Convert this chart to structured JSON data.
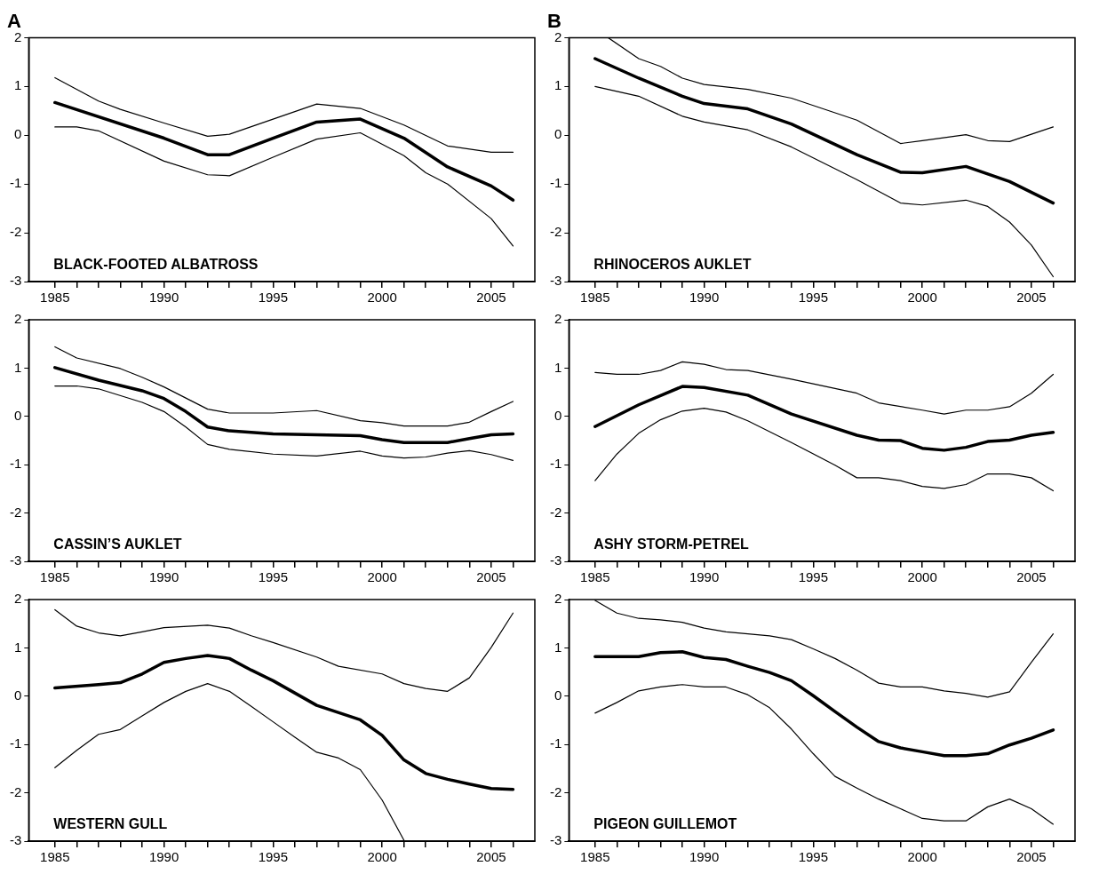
{
  "chart_data": [
    {
      "type": "line",
      "title": "A",
      "annotations": [
        "BLACK-FOOTED ALBATROSS"
      ],
      "xlim": [
        1983.8,
        2007
      ],
      "ylim": [
        -3,
        2
      ],
      "xticks": [
        1985,
        {
          "value": 1986,
          "label": null
        },
        {
          "value": 1987,
          "label": null
        },
        {
          "value": 1988,
          "label": null
        },
        {
          "value": 1989,
          "label": null
        },
        1990,
        {
          "value": 1991,
          "label": null
        },
        {
          "value": 1992,
          "label": null
        },
        {
          "value": 1993,
          "label": null
        },
        {
          "value": 1994,
          "label": null
        },
        1995,
        {
          "value": 1996,
          "label": null
        },
        {
          "value": 1997,
          "label": null
        },
        {
          "value": 1998,
          "label": null
        },
        {
          "value": 1999,
          "label": null
        },
        2000,
        {
          "value": 2001,
          "label": null
        },
        {
          "value": 2002,
          "label": null
        },
        {
          "value": 2003,
          "label": null
        },
        {
          "value": 2004,
          "label": null
        },
        2005,
        {
          "value": 2006,
          "label": null
        }
      ],
      "yticks": [
        -3,
        -2,
        -1,
        0,
        1,
        2
      ],
      "grid": false,
      "legend": false,
      "marker": "none",
      "line_style": "solid",
      "series": [
        {
          "color": "#000000",
          "x": [
            1985,
            1990,
            1992,
            1993,
            1995,
            1997,
            1999,
            2001,
            2003,
            2005,
            2006
          ],
          "values": [
            0.67,
            -0.06,
            -0.4,
            -0.4,
            -0.06,
            0.27,
            0.33,
            -0.06,
            -0.65,
            -1.04,
            -1.33
          ]
        },
        {
          "color": "#000000",
          "x": [
            1985,
            1987,
            1988,
            1990,
            1992,
            1993,
            1995,
            1997,
            1999,
            2001,
            2003,
            2005,
            2006
          ],
          "values": [
            1.18,
            0.7,
            0.53,
            0.25,
            -0.02,
            0.02,
            0.33,
            0.64,
            0.55,
            0.21,
            -0.22,
            -0.35,
            -0.35
          ]
        },
        {
          "color": "#000000",
          "x": [
            1985,
            1986,
            1987,
            1990,
            1992,
            1993,
            1995,
            1997,
            1999,
            2001,
            2002,
            2003,
            2005,
            2006
          ],
          "values": [
            0.17,
            0.17,
            0.09,
            -0.53,
            -0.81,
            -0.83,
            -0.45,
            -0.08,
            0.05,
            -0.42,
            -0.77,
            -1.0,
            -1.71,
            -2.27
          ]
        }
      ]
    },
    {
      "type": "line",
      "title": "B",
      "annotations": [
        "RHINOCEROS AUKLET"
      ],
      "xlim": [
        1983.8,
        2007
      ],
      "ylim": [
        -3,
        2
      ],
      "xticks": [
        1985,
        {
          "value": 1986,
          "label": null
        },
        {
          "value": 1987,
          "label": null
        },
        {
          "value": 1988,
          "label": null
        },
        {
          "value": 1989,
          "label": null
        },
        1990,
        {
          "value": 1991,
          "label": null
        },
        {
          "value": 1992,
          "label": null
        },
        {
          "value": 1993,
          "label": null
        },
        {
          "value": 1994,
          "label": null
        },
        1995,
        {
          "value": 1996,
          "label": null
        },
        {
          "value": 1997,
          "label": null
        },
        {
          "value": 1998,
          "label": null
        },
        {
          "value": 1999,
          "label": null
        },
        2000,
        {
          "value": 2001,
          "label": null
        },
        {
          "value": 2002,
          "label": null
        },
        {
          "value": 2003,
          "label": null
        },
        {
          "value": 2004,
          "label": null
        },
        2005,
        {
          "value": 2006,
          "label": null
        }
      ],
      "yticks": [
        -3,
        -2,
        -1,
        0,
        1,
        2
      ],
      "grid": false,
      "legend": false,
      "marker": "none",
      "line_style": "solid",
      "series": [
        {
          "color": "#000000",
          "x": [
            1985,
            1987,
            1989,
            1990,
            1992,
            1994,
            1997,
            1999,
            2000,
            2002,
            2004,
            2006
          ],
          "values": [
            1.57,
            1.17,
            0.8,
            0.65,
            0.54,
            0.23,
            -0.4,
            -0.76,
            -0.77,
            -0.64,
            -0.95,
            -1.39
          ]
        },
        {
          "color": "#000000",
          "x": [
            1985.6,
            1987,
            1988,
            1989,
            1990,
            1992,
            1994,
            1997,
            1999,
            2000,
            2002,
            2003,
            2004,
            2006
          ],
          "values": [
            2.0,
            1.57,
            1.41,
            1.17,
            1.04,
            0.94,
            0.76,
            0.31,
            -0.17,
            -0.11,
            0.01,
            -0.11,
            -0.13,
            0.17
          ]
        },
        {
          "color": "#000000",
          "x": [
            1985,
            1987,
            1989,
            1990,
            1992,
            1994,
            1997,
            1999,
            2000,
            2002,
            2003,
            2004,
            2005,
            2006
          ],
          "values": [
            1.0,
            0.8,
            0.39,
            0.27,
            0.11,
            -0.24,
            -0.91,
            -1.39,
            -1.43,
            -1.33,
            -1.46,
            -1.78,
            -2.25,
            -2.9
          ]
        }
      ]
    },
    {
      "type": "line",
      "annotations": [
        "CASSIN’S AUKLET"
      ],
      "xlim": [
        1983.8,
        2007
      ],
      "ylim": [
        -3,
        2
      ],
      "xticks": [
        1985,
        {
          "value": 1986,
          "label": null
        },
        {
          "value": 1987,
          "label": null
        },
        {
          "value": 1988,
          "label": null
        },
        {
          "value": 1989,
          "label": null
        },
        1990,
        {
          "value": 1991,
          "label": null
        },
        {
          "value": 1992,
          "label": null
        },
        {
          "value": 1993,
          "label": null
        },
        {
          "value": 1994,
          "label": null
        },
        1995,
        {
          "value": 1996,
          "label": null
        },
        {
          "value": 1997,
          "label": null
        },
        {
          "value": 1998,
          "label": null
        },
        {
          "value": 1999,
          "label": null
        },
        2000,
        {
          "value": 2001,
          "label": null
        },
        {
          "value": 2002,
          "label": null
        },
        {
          "value": 2003,
          "label": null
        },
        {
          "value": 2004,
          "label": null
        },
        2005,
        {
          "value": 2006,
          "label": null
        }
      ],
      "yticks": [
        -3,
        -2,
        -1,
        0,
        1,
        2
      ],
      "grid": false,
      "legend": false,
      "marker": "none",
      "line_style": "solid",
      "series": [
        {
          "color": "#000000",
          "x": [
            1985,
            1987,
            1989,
            1990,
            1991,
            1992,
            1993,
            1995,
            1997,
            1999,
            2000,
            2001,
            2003,
            2004,
            2005,
            2006
          ],
          "values": [
            1.01,
            0.75,
            0.53,
            0.37,
            0.1,
            -0.22,
            -0.3,
            -0.36,
            -0.38,
            -0.4,
            -0.48,
            -0.54,
            -0.54,
            -0.46,
            -0.38,
            -0.36
          ]
        },
        {
          "color": "#000000",
          "x": [
            1985,
            1986,
            1988,
            1989,
            1990,
            1992,
            1993,
            1995,
            1997,
            1999,
            2000,
            2001,
            2003,
            2004,
            2005,
            2006
          ],
          "values": [
            1.44,
            1.21,
            0.99,
            0.81,
            0.61,
            0.15,
            0.07,
            0.07,
            0.12,
            -0.09,
            -0.13,
            -0.2,
            -0.2,
            -0.12,
            0.1,
            0.31
          ]
        },
        {
          "color": "#000000",
          "x": [
            1985,
            1986,
            1987,
            1989,
            1990,
            1991,
            1992,
            1993,
            1995,
            1997,
            1999,
            2000,
            2001,
            2002,
            2003,
            2004,
            2005,
            2006
          ],
          "values": [
            0.63,
            0.63,
            0.57,
            0.29,
            0.1,
            -0.22,
            -0.58,
            -0.68,
            -0.78,
            -0.82,
            -0.72,
            -0.82,
            -0.86,
            -0.84,
            -0.76,
            -0.71,
            -0.79,
            -0.91
          ]
        }
      ]
    },
    {
      "type": "line",
      "annotations": [
        "ASHY STORM-PETREL"
      ],
      "xlim": [
        1983.8,
        2007
      ],
      "ylim": [
        -3,
        2
      ],
      "xticks": [
        1985,
        {
          "value": 1986,
          "label": null
        },
        {
          "value": 1987,
          "label": null
        },
        {
          "value": 1988,
          "label": null
        },
        {
          "value": 1989,
          "label": null
        },
        1990,
        {
          "value": 1991,
          "label": null
        },
        {
          "value": 1992,
          "label": null
        },
        {
          "value": 1993,
          "label": null
        },
        {
          "value": 1994,
          "label": null
        },
        1995,
        {
          "value": 1996,
          "label": null
        },
        {
          "value": 1997,
          "label": null
        },
        {
          "value": 1998,
          "label": null
        },
        {
          "value": 1999,
          "label": null
        },
        2000,
        {
          "value": 2001,
          "label": null
        },
        {
          "value": 2002,
          "label": null
        },
        {
          "value": 2003,
          "label": null
        },
        {
          "value": 2004,
          "label": null
        },
        2005,
        {
          "value": 2006,
          "label": null
        }
      ],
      "yticks": [
        -3,
        -2,
        -1,
        0,
        1,
        2
      ],
      "grid": false,
      "legend": false,
      "marker": "none",
      "line_style": "solid",
      "series": [
        {
          "color": "#000000",
          "x": [
            1985,
            1987,
            1989,
            1990,
            1992,
            1994,
            1997,
            1998,
            1999,
            2000,
            2001,
            2002,
            2003,
            2004,
            2005,
            2006
          ],
          "values": [
            -0.21,
            0.24,
            0.62,
            0.6,
            0.44,
            0.05,
            -0.39,
            -0.49,
            -0.5,
            -0.66,
            -0.7,
            -0.64,
            -0.52,
            -0.49,
            -0.39,
            -0.33
          ]
        },
        {
          "color": "#000000",
          "x": [
            1985,
            1986,
            1987,
            1988,
            1989,
            1990,
            1991,
            1992,
            1994,
            1997,
            1998,
            2000,
            2001,
            2002,
            2003,
            2004,
            2005,
            2006
          ],
          "values": [
            0.91,
            0.87,
            0.87,
            0.95,
            1.13,
            1.08,
            0.97,
            0.95,
            0.77,
            0.48,
            0.28,
            0.13,
            0.05,
            0.13,
            0.13,
            0.2,
            0.48,
            0.87
          ]
        },
        {
          "color": "#000000",
          "x": [
            1985,
            1986,
            1987,
            1988,
            1989,
            1990,
            1991,
            1992,
            1994,
            1996,
            1997,
            1998,
            1999,
            2000,
            2001,
            2002,
            2003,
            2004,
            2005,
            2006
          ],
          "values": [
            -1.33,
            -0.78,
            -0.35,
            -0.07,
            0.11,
            0.17,
            0.09,
            -0.09,
            -0.54,
            -1.01,
            -1.27,
            -1.27,
            -1.33,
            -1.45,
            -1.49,
            -1.41,
            -1.19,
            -1.19,
            -1.27,
            -1.54
          ]
        }
      ]
    },
    {
      "type": "line",
      "annotations": [
        "WESTERN GULL"
      ],
      "xlim": [
        1983.8,
        2007
      ],
      "ylim": [
        -3,
        2
      ],
      "xticks": [
        1985,
        {
          "value": 1986,
          "label": null
        },
        {
          "value": 1987,
          "label": null
        },
        {
          "value": 1988,
          "label": null
        },
        {
          "value": 1989,
          "label": null
        },
        1990,
        {
          "value": 1991,
          "label": null
        },
        {
          "value": 1992,
          "label": null
        },
        {
          "value": 1993,
          "label": null
        },
        {
          "value": 1994,
          "label": null
        },
        1995,
        {
          "value": 1996,
          "label": null
        },
        {
          "value": 1997,
          "label": null
        },
        {
          "value": 1998,
          "label": null
        },
        {
          "value": 1999,
          "label": null
        },
        2000,
        {
          "value": 2001,
          "label": null
        },
        {
          "value": 2002,
          "label": null
        },
        {
          "value": 2003,
          "label": null
        },
        {
          "value": 2004,
          "label": null
        },
        2005,
        {
          "value": 2006,
          "label": null
        }
      ],
      "yticks": [
        -3,
        -2,
        -1,
        0,
        1,
        2
      ],
      "grid": false,
      "legend": false,
      "marker": "none",
      "line_style": "solid",
      "series": [
        {
          "color": "#000000",
          "x": [
            1985,
            1987,
            1988,
            1989,
            1990,
            1991,
            1992,
            1993,
            1994,
            1995,
            1997,
            1999,
            2000,
            2001,
            2002,
            2003,
            2004,
            2005,
            2006
          ],
          "values": [
            0.17,
            0.24,
            0.28,
            0.46,
            0.7,
            0.78,
            0.84,
            0.78,
            0.54,
            0.32,
            -0.19,
            -0.49,
            -0.81,
            -1.32,
            -1.6,
            -1.72,
            -1.82,
            -1.91,
            -1.93
          ]
        },
        {
          "color": "#000000",
          "x": [
            1985,
            1986,
            1987,
            1988,
            1989,
            1990,
            1992,
            1993,
            1994,
            1995,
            1997,
            1998,
            2000,
            2001,
            2002,
            2003,
            2004,
            2005,
            2006
          ],
          "values": [
            1.79,
            1.45,
            1.31,
            1.25,
            1.33,
            1.42,
            1.47,
            1.41,
            1.25,
            1.11,
            0.81,
            0.62,
            0.46,
            0.26,
            0.16,
            0.1,
            0.38,
            1.01,
            1.72
          ]
        },
        {
          "color": "#000000",
          "x": [
            1985,
            1986,
            1987,
            1988,
            1989,
            1990,
            1991,
            1992,
            1993,
            1994,
            1995,
            1996,
            1997,
            1998,
            1999,
            2000,
            2001
          ],
          "values": [
            -1.48,
            -1.12,
            -0.79,
            -0.69,
            -0.41,
            -0.13,
            0.1,
            0.26,
            0.1,
            -0.21,
            -0.53,
            -0.85,
            -1.16,
            -1.28,
            -1.52,
            -2.15,
            -2.98
          ]
        }
      ]
    },
    {
      "type": "line",
      "annotations": [
        "PIGEON GUILLEMOT"
      ],
      "xlim": [
        1983.8,
        2007
      ],
      "ylim": [
        -3,
        2
      ],
      "xticks": [
        1985,
        {
          "value": 1986,
          "label": null
        },
        {
          "value": 1987,
          "label": null
        },
        {
          "value": 1988,
          "label": null
        },
        {
          "value": 1989,
          "label": null
        },
        1990,
        {
          "value": 1991,
          "label": null
        },
        {
          "value": 1992,
          "label": null
        },
        {
          "value": 1993,
          "label": null
        },
        {
          "value": 1994,
          "label": null
        },
        1995,
        {
          "value": 1996,
          "label": null
        },
        {
          "value": 1997,
          "label": null
        },
        {
          "value": 1998,
          "label": null
        },
        {
          "value": 1999,
          "label": null
        },
        2000,
        {
          "value": 2001,
          "label": null
        },
        {
          "value": 2002,
          "label": null
        },
        {
          "value": 2003,
          "label": null
        },
        {
          "value": 2004,
          "label": null
        },
        2005,
        {
          "value": 2006,
          "label": null
        }
      ],
      "yticks": [
        -3,
        -2,
        -1,
        0,
        1,
        2
      ],
      "grid": false,
      "legend": false,
      "marker": "none",
      "line_style": "solid",
      "series": [
        {
          "color": "#000000",
          "x": [
            1985,
            1987,
            1988,
            1989,
            1990,
            1991,
            1992,
            1993,
            1994,
            1995,
            1996,
            1997,
            1998,
            1999,
            2000,
            2001,
            2002,
            2003,
            2004,
            2005,
            2006
          ],
          "values": [
            0.82,
            0.82,
            0.9,
            0.92,
            0.8,
            0.76,
            0.62,
            0.49,
            0.32,
            0.01,
            -0.32,
            -0.64,
            -0.94,
            -1.07,
            -1.15,
            -1.23,
            -1.23,
            -1.19,
            -1.01,
            -0.87,
            -0.7
          ]
        },
        {
          "color": "#000000",
          "x": [
            1985,
            1986,
            1987,
            1988,
            1989,
            1990,
            1991,
            1992,
            1993,
            1994,
            1995,
            1996,
            1997,
            1998,
            1999,
            2000,
            2001,
            2002,
            2003,
            2004,
            2005,
            2006
          ],
          "values": [
            1.98,
            1.72,
            1.61,
            1.58,
            1.53,
            1.41,
            1.33,
            1.29,
            1.25,
            1.17,
            0.98,
            0.78,
            0.54,
            0.27,
            0.19,
            0.19,
            0.11,
            0.06,
            -0.02,
            0.09,
            0.7,
            1.29
          ]
        },
        {
          "color": "#000000",
          "x": [
            1985,
            1986,
            1987,
            1988,
            1989,
            1990,
            1991,
            1992,
            1993,
            1994,
            1995,
            1996,
            1997,
            1998,
            1999,
            2000,
            2001,
            2002,
            2003,
            2004,
            2005,
            2006
          ],
          "values": [
            -0.35,
            -0.13,
            0.11,
            0.19,
            0.24,
            0.19,
            0.19,
            0.03,
            -0.24,
            -0.68,
            -1.19,
            -1.66,
            -1.9,
            -2.13,
            -2.33,
            -2.53,
            -2.58,
            -2.58,
            -2.29,
            -2.13,
            -2.33,
            -2.65
          ]
        }
      ]
    }
  ]
}
